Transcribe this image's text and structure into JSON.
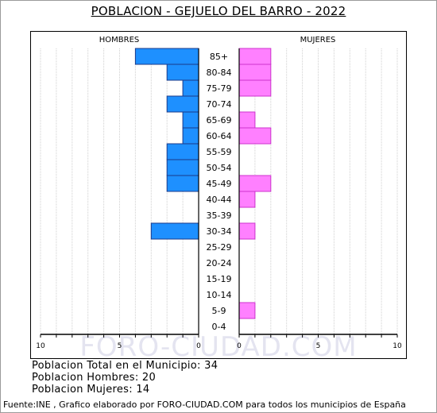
{
  "title": "POBLACION - GEJUELO DEL BARRO - 2022",
  "chart_data": {
    "type": "bar",
    "orientation": "horizontal-pyramid",
    "categories": [
      "85+",
      "80-84",
      "75-79",
      "70-74",
      "65-69",
      "60-64",
      "55-59",
      "50-54",
      "45-49",
      "40-44",
      "35-39",
      "30-34",
      "25-29",
      "20-24",
      "15-19",
      "10-14",
      "5-9",
      "0-4"
    ],
    "series": [
      {
        "name": "HOMBRES",
        "values": [
          4,
          2,
          1,
          2,
          1,
          1,
          2,
          2,
          2,
          0,
          0,
          3,
          0,
          0,
          0,
          0,
          0,
          0
        ],
        "color": "#1e90ff"
      },
      {
        "name": "MUJERES",
        "values": [
          2,
          2,
          2,
          0,
          1,
          2,
          0,
          0,
          2,
          1,
          0,
          1,
          0,
          0,
          0,
          0,
          1,
          0
        ],
        "color": "#ff80ff"
      }
    ],
    "left_ticks": [
      "10",
      "5",
      "0"
    ],
    "right_ticks": [
      "0",
      "5",
      "10"
    ],
    "xlim": [
      0,
      10
    ],
    "grid": true
  },
  "watermark": "FORO-CIUDAD.COM",
  "stats": {
    "total": "Poblacion Total en el Municipio: 34",
    "men": "Poblacion Hombres: 20",
    "women": "Poblacion Mujeres: 14"
  },
  "footer": "Fuente:INE , Grafico elaborado por FORO-CIUDAD.COM para todos los municipios de España"
}
